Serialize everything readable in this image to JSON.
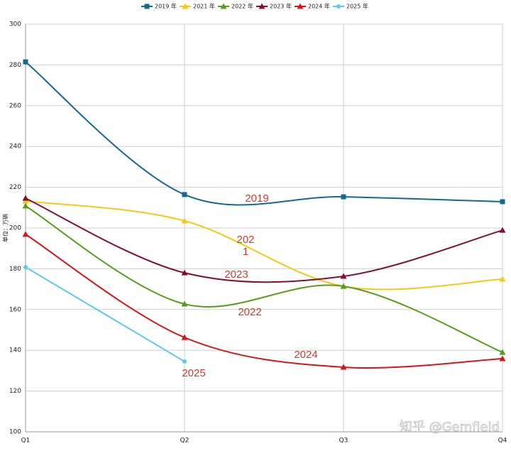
{
  "chart_data": {
    "type": "line",
    "ylabel": "单位：万辆",
    "categories": [
      "Q1",
      "Q2",
      "Q3",
      "Q4"
    ],
    "series": [
      {
        "name": "2019 年",
        "color": "#13698f",
        "marker": "square",
        "values": [
          281.5,
          216.4,
          215.3,
          212.9
        ]
      },
      {
        "name": "2021 年",
        "color": "#f5c816",
        "marker": "triangle",
        "values": [
          213.2,
          203.5,
          171.4,
          174.9
        ]
      },
      {
        "name": "2022 年",
        "color": "#579d1c",
        "marker": "triangle",
        "values": [
          210.8,
          162.7,
          171.4,
          139.0
        ]
      },
      {
        "name": "2023 年",
        "color": "#84102e",
        "marker": "triangle",
        "values": [
          214.6,
          178.0,
          176.3,
          198.9
        ]
      },
      {
        "name": "2024 年",
        "color": "#d7141a",
        "marker": "triangle",
        "values": [
          196.9,
          146.3,
          131.7,
          135.9
        ]
      },
      {
        "name": "2025 年",
        "color": "#5fc8ee",
        "marker": "star",
        "values": [
          180.8,
          134.5,
          null,
          null
        ]
      }
    ],
    "ylim": [
      100,
      300
    ],
    "yticks": [
      100,
      120,
      140,
      160,
      180,
      200,
      220,
      240,
      260,
      280,
      300
    ],
    "grid": true,
    "legend": "top",
    "annotations": [
      "2019",
      "202",
      "1",
      "2023",
      "2022",
      "2024",
      "2025"
    ],
    "watermark": "知乎 @Gemfield"
  }
}
